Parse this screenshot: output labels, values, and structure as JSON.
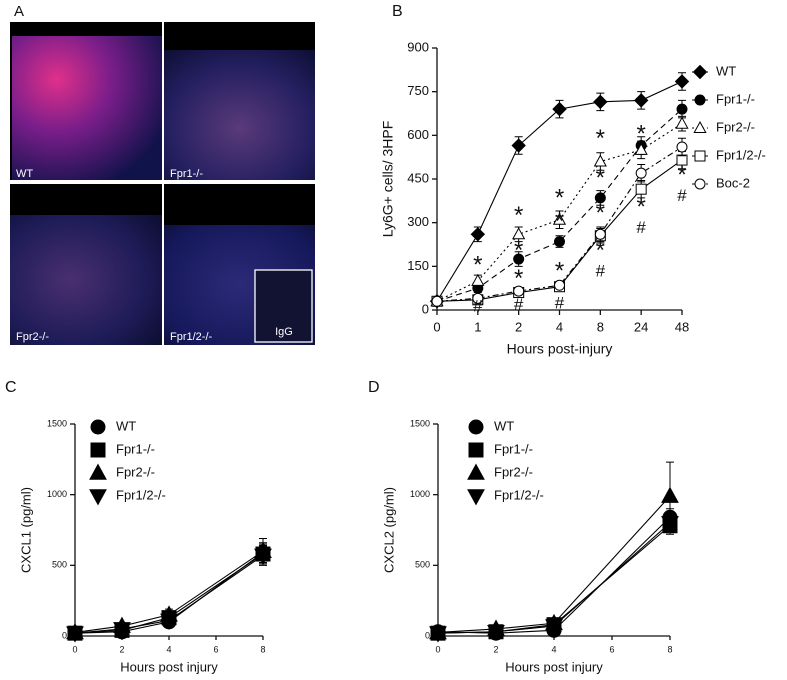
{
  "image_panel": {
    "label": "A",
    "tiles": [
      "WT",
      "Fpr1-/-",
      "Fpr2-/-",
      "Fpr1/2-/-"
    ],
    "inset": "IgG"
  },
  "chart_data": [
    {
      "type": "line",
      "panel_label": "B",
      "x_label": "Hours post-injury",
      "y_label": "Ly6G+ cells/ 3HPF",
      "categories": [
        "0",
        "1",
        "2",
        "4",
        "8",
        "24",
        "48"
      ],
      "ylim": [
        0,
        900
      ],
      "yticks": [
        0,
        150,
        300,
        450,
        600,
        750,
        900
      ],
      "series": [
        {
          "name": "WT",
          "color": "#000000",
          "marker": "diamond",
          "filled": true,
          "line_style": "solid",
          "values": [
            30,
            260,
            565,
            690,
            715,
            720,
            785
          ],
          "errors": [
            8,
            25,
            30,
            30,
            30,
            30,
            30
          ]
        },
        {
          "name": "Fpr1-/-",
          "color": "#000000",
          "marker": "circle",
          "filled": true,
          "line_style": "dashed",
          "values": [
            30,
            75,
            175,
            235,
            385,
            565,
            690
          ],
          "errors": [
            8,
            15,
            25,
            20,
            25,
            30,
            30
          ]
        },
        {
          "name": "Fpr2-/-",
          "color": "#000000",
          "marker": "triangle",
          "filled": false,
          "line_style": "dotted",
          "values": [
            30,
            100,
            260,
            310,
            510,
            550,
            640
          ],
          "errors": [
            8,
            20,
            25,
            30,
            30,
            30,
            25
          ]
        },
        {
          "name": "Fpr1/2-/-",
          "color": "#000000",
          "marker": "square",
          "filled": false,
          "line_style": "solid",
          "values": [
            30,
            35,
            60,
            80,
            255,
            415,
            515
          ],
          "errors": [
            8,
            8,
            10,
            10,
            25,
            30,
            30
          ]
        },
        {
          "name": "Boc-2",
          "color": "#000000",
          "marker": "circle",
          "filled": false,
          "line_style": "dashdot",
          "values": [
            30,
            40,
            65,
            85,
            260,
            470,
            560
          ],
          "errors": [
            8,
            8,
            10,
            10,
            25,
            30,
            30
          ]
        }
      ],
      "annotations": [
        {
          "text": "*",
          "x": "1",
          "y": 150
        },
        {
          "text": "#",
          "x": "1",
          "y": 10
        },
        {
          "text": "*",
          "x": "2",
          "y": 320
        },
        {
          "text": "*",
          "x": "2",
          "y": 200
        },
        {
          "text": "*",
          "x": "2",
          "y": 105
        },
        {
          "text": "#",
          "x": "2",
          "y": 15
        },
        {
          "text": "*",
          "x": "4",
          "y": 380
        },
        {
          "text": "*",
          "x": "4",
          "y": 300
        },
        {
          "text": "*",
          "x": "4",
          "y": 130
        },
        {
          "text": "#",
          "x": "4",
          "y": 20
        },
        {
          "text": "*",
          "x": "8",
          "y": 585
        },
        {
          "text": "*",
          "x": "8",
          "y": 450
        },
        {
          "text": "*",
          "x": "8",
          "y": 330
        },
        {
          "text": "*",
          "x": "8",
          "y": 200
        },
        {
          "text": "#",
          "x": "8",
          "y": 130
        },
        {
          "text": "*",
          "x": "24",
          "y": 600
        },
        {
          "text": "*",
          "x": "24",
          "y": 350
        },
        {
          "text": "#",
          "x": "24",
          "y": 280
        },
        {
          "text": "*",
          "x": "48",
          "y": 460
        },
        {
          "text": "#",
          "x": "48",
          "y": 390
        }
      ]
    },
    {
      "type": "line",
      "panel_label": "C",
      "x_label": "Hours post injury",
      "y_label": "CXCL1 (pg/ml)",
      "x": [
        0,
        2,
        4,
        8
      ],
      "xlim": [
        0,
        8
      ],
      "xticks": [
        0,
        2,
        4,
        6,
        8
      ],
      "ylim": [
        0,
        1500
      ],
      "yticks": [
        0,
        500,
        1000,
        1500
      ],
      "series": [
        {
          "name": "WT",
          "color": "#000000",
          "marker": "circle",
          "filled": true,
          "values": [
            20,
            30,
            100,
            590
          ],
          "errors": [
            5,
            10,
            40,
            70
          ]
        },
        {
          "name": "Fpr1-/-",
          "color": "#000000",
          "marker": "square",
          "filled": true,
          "values": [
            20,
            40,
            130,
            580
          ],
          "errors": [
            5,
            10,
            40,
            70
          ]
        },
        {
          "name": "Fpr2-/-",
          "color": "#000000",
          "marker": "triangle",
          "filled": true,
          "values": [
            25,
            70,
            150,
            600
          ],
          "errors": [
            5,
            15,
            40,
            90
          ]
        },
        {
          "name": "Fpr1/2-/-",
          "color": "#000000",
          "marker": "invtriangle",
          "filled": true,
          "values": [
            20,
            50,
            110,
            570
          ],
          "errors": [
            5,
            10,
            40,
            70
          ]
        }
      ]
    },
    {
      "type": "line",
      "panel_label": "D",
      "x_label": "Hours post injury",
      "y_label": "CXCL2 (pg/ml)",
      "x": [
        0,
        2,
        4,
        8
      ],
      "xlim": [
        0,
        8
      ],
      "xticks": [
        0,
        2,
        4,
        6,
        8
      ],
      "ylim": [
        0,
        1500
      ],
      "yticks": [
        0,
        500,
        1000,
        1500
      ],
      "series": [
        {
          "name": "WT",
          "color": "#000000",
          "marker": "circle",
          "filled": true,
          "values": [
            30,
            20,
            40,
            840
          ],
          "errors": [
            5,
            5,
            15,
            60
          ]
        },
        {
          "name": "Fpr1-/-",
          "color": "#000000",
          "marker": "square",
          "filled": true,
          "values": [
            20,
            30,
            80,
            780
          ],
          "errors": [
            5,
            5,
            15,
            60
          ]
        },
        {
          "name": "Fpr2-/-",
          "color": "#000000",
          "marker": "triangle",
          "filled": true,
          "values": [
            25,
            50,
            90,
            990
          ],
          "errors": [
            5,
            10,
            20,
            240
          ]
        },
        {
          "name": "Fpr1/2-/-",
          "color": "#000000",
          "marker": "invtriangle",
          "filled": true,
          "values": [
            20,
            30,
            70,
            800
          ],
          "errors": [
            5,
            5,
            15,
            60
          ]
        }
      ]
    }
  ]
}
